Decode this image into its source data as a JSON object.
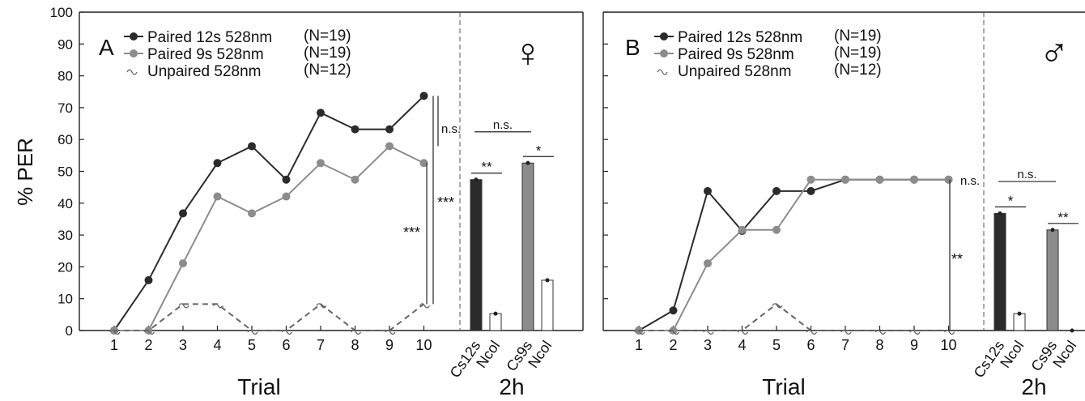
{
  "chart_data": [
    {
      "type": "line",
      "panel_label": "A",
      "sex_symbol": "♀",
      "ylabel": "% PER",
      "xlabel": "Trial",
      "ylim": [
        0,
        100
      ],
      "yticks": [
        "0",
        "10",
        "20",
        "30",
        "40",
        "50",
        "60",
        "70",
        "80",
        "90",
        "100"
      ],
      "x": [
        "1",
        "2",
        "3",
        "4",
        "5",
        "6",
        "7",
        "8",
        "9",
        "10"
      ],
      "series": [
        {
          "name": "Paired 12s 528nm",
          "n": "(N=19)",
          "color": "#2b2b2b",
          "style": "solid",
          "values": [
            0,
            15.8,
            36.8,
            52.6,
            57.9,
            47.4,
            68.4,
            63.2,
            63.2,
            73.7
          ]
        },
        {
          "name": "Paired   9s 528nm",
          "n": "(N=19)",
          "color": "#8c8c8c",
          "style": "solid",
          "values": [
            0,
            0,
            21.1,
            42.1,
            36.8,
            42.1,
            52.6,
            47.4,
            57.9,
            52.6
          ]
        },
        {
          "name": "Unpaired 528nm",
          "n": "(N=12)",
          "color": "#666666",
          "style": "dashed",
          "values": [
            0,
            0,
            8.3,
            8.3,
            0,
            0,
            8.3,
            0,
            0,
            8.3
          ]
        }
      ],
      "trial_annotations": [
        {
          "label": "n.s.",
          "from": 73.7,
          "to": 57.9
        },
        {
          "label": "***",
          "from": 73.7,
          "to": 8.3
        },
        {
          "label": "***",
          "from": 52.6,
          "to": 8.3
        }
      ],
      "bars": {
        "group_label": "2h",
        "categories": [
          "Cs12s",
          "Ncol",
          "Cs9s",
          "Ncol"
        ],
        "values": [
          47.4,
          5.3,
          52.6,
          15.8
        ],
        "colors": [
          "#2b2b2b",
          "#ffffff",
          "#8c8c8c",
          "#ffffff"
        ],
        "pair_labels": [
          "**",
          "*"
        ],
        "group_label_ns": "n.s."
      }
    },
    {
      "type": "line",
      "panel_label": "B",
      "sex_symbol": "♂",
      "xlabel": "Trial",
      "ylim": [
        0,
        100
      ],
      "x": [
        "1",
        "2",
        "3",
        "4",
        "5",
        "6",
        "7",
        "8",
        "9",
        "10"
      ],
      "series": [
        {
          "name": "Paired 12s 528nm",
          "n": "(N=19)",
          "color": "#2b2b2b",
          "style": "solid",
          "values": [
            0,
            6.3,
            43.8,
            31.3,
            43.8,
            43.8,
            47.4,
            47.4,
            47.4,
            47.4
          ]
        },
        {
          "name": "Paired   9s 528nm",
          "n": "(N=19)",
          "color": "#8c8c8c",
          "style": "solid",
          "values": [
            0,
            0,
            21.1,
            31.6,
            31.6,
            47.4,
            47.4,
            47.4,
            47.4,
            47.4
          ]
        },
        {
          "name": "Unpaired 528nm",
          "n": "(N=12)",
          "color": "#666666",
          "style": "dashed",
          "values": [
            0,
            0,
            0,
            0,
            8.3,
            0,
            0,
            0,
            0,
            0
          ]
        }
      ],
      "trial_annotations": [
        {
          "label": "n.s.",
          "from": 47.4,
          "to": 47.4
        },
        {
          "label": "**",
          "from": 47.4,
          "to": 0
        }
      ],
      "bars": {
        "group_label": "2h",
        "categories": [
          "Cs12s",
          "Ncol",
          "Cs9s",
          "Ncol"
        ],
        "values": [
          36.8,
          5.3,
          31.6,
          0
        ],
        "colors": [
          "#2b2b2b",
          "#ffffff",
          "#8c8c8c",
          "#ffffff"
        ],
        "pair_labels": [
          "*",
          "**"
        ],
        "group_label_ns": "n.s."
      }
    }
  ]
}
